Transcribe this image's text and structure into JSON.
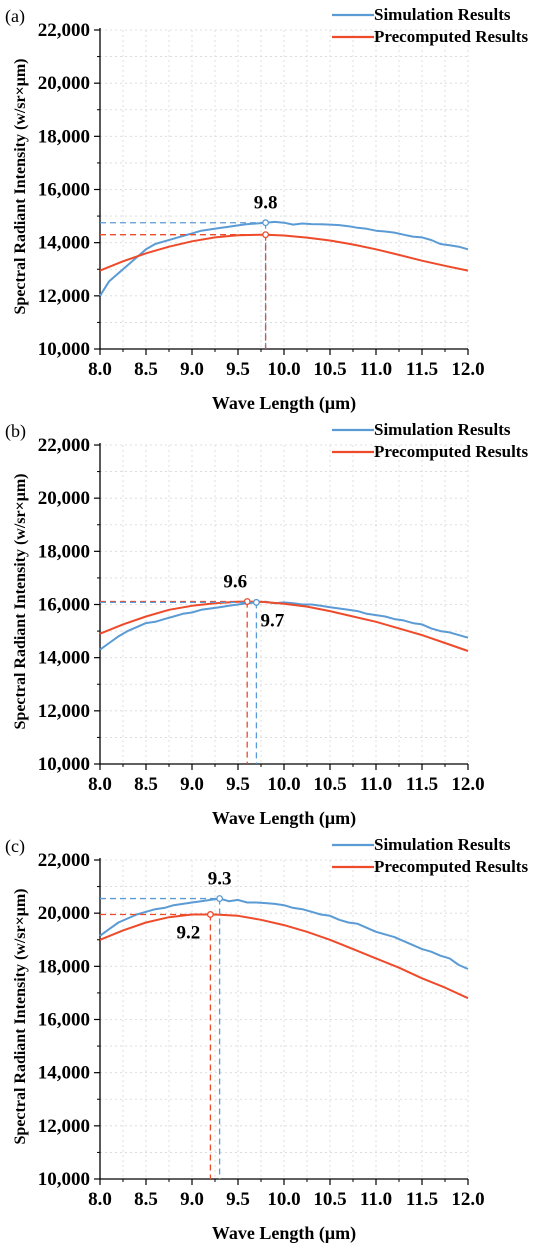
{
  "colors": {
    "simulation": "#5B9BD5",
    "precomputed": "#EE4B2B",
    "grid": "#d8d8d8",
    "axis": "#000000"
  },
  "chart_data": [
    {
      "panel_label": "(a)",
      "type": "line",
      "xlabel": "Wave Length (μm)",
      "ylabel": "Spectral Radiant Intensity (w/sr×μm)",
      "xlim": [
        8.0,
        12.0
      ],
      "ylim": [
        10000,
        22000
      ],
      "xticks": [
        "8.0",
        "8.5",
        "9.0",
        "9.5",
        "10.0",
        "10.5",
        "11.0",
        "11.5",
        "12.0"
      ],
      "yticks": [
        "10,000",
        "12,000",
        "14,000",
        "16,000",
        "18,000",
        "20,000",
        "22,000"
      ],
      "grid": true,
      "legend_position": "top-right",
      "series": [
        {
          "name": "Simulation Results",
          "color": "#5B9BD5",
          "x": [
            8.0,
            8.1,
            8.2,
            8.3,
            8.4,
            8.5,
            8.6,
            8.7,
            8.8,
            8.9,
            9.0,
            9.1,
            9.2,
            9.3,
            9.4,
            9.5,
            9.6,
            9.7,
            9.8,
            9.9,
            10.0,
            10.1,
            10.2,
            10.3,
            10.4,
            10.5,
            10.6,
            10.7,
            10.8,
            10.9,
            11.0,
            11.1,
            11.2,
            11.3,
            11.4,
            11.5,
            11.6,
            11.7,
            11.8,
            11.9,
            12.0
          ],
          "y": [
            12000,
            12550,
            12850,
            13150,
            13450,
            13750,
            13950,
            14050,
            14150,
            14250,
            14350,
            14450,
            14500,
            14550,
            14600,
            14650,
            14700,
            14720,
            14750,
            14780,
            14750,
            14680,
            14720,
            14700,
            14690,
            14680,
            14660,
            14620,
            14560,
            14520,
            14450,
            14420,
            14380,
            14300,
            14230,
            14200,
            14100,
            13950,
            13900,
            13850,
            13750
          ]
        },
        {
          "name": "Precomputed Results",
          "color": "#EE4B2B",
          "x": [
            8.0,
            8.25,
            8.5,
            8.75,
            9.0,
            9.25,
            9.5,
            9.75,
            9.8,
            10.0,
            10.25,
            10.5,
            10.75,
            11.0,
            11.25,
            11.5,
            11.75,
            12.0
          ],
          "y": [
            12950,
            13300,
            13600,
            13850,
            14050,
            14200,
            14280,
            14300,
            14300,
            14270,
            14190,
            14080,
            13930,
            13750,
            13540,
            13320,
            13130,
            12950
          ]
        }
      ],
      "annotations": [
        {
          "text": "9.8",
          "series": "Simulation Results",
          "x": 9.8,
          "y": 14750
        },
        {
          "x": 9.8,
          "y": 14300,
          "series": "Precomputed Results"
        }
      ]
    },
    {
      "panel_label": "(b)",
      "type": "line",
      "xlabel": "Wave Length (μm)",
      "ylabel": "Spectral Radiant Intensity (w/sr×μm)",
      "xlim": [
        8.0,
        12.0
      ],
      "ylim": [
        10000,
        22000
      ],
      "xticks": [
        "8.0",
        "8.5",
        "9.0",
        "9.5",
        "10.0",
        "10.5",
        "11.0",
        "11.5",
        "12.0"
      ],
      "yticks": [
        "10,000",
        "12,000",
        "14,000",
        "16,000",
        "18,000",
        "20,000",
        "22,000"
      ],
      "grid": true,
      "legend_position": "top-right",
      "series": [
        {
          "name": "Simulation Results",
          "color": "#5B9BD5",
          "x": [
            8.0,
            8.1,
            8.2,
            8.3,
            8.4,
            8.5,
            8.6,
            8.7,
            8.8,
            8.9,
            9.0,
            9.1,
            9.2,
            9.3,
            9.4,
            9.5,
            9.6,
            9.7,
            9.8,
            9.9,
            10.0,
            10.1,
            10.2,
            10.3,
            10.4,
            10.5,
            10.6,
            10.7,
            10.8,
            10.9,
            11.0,
            11.1,
            11.2,
            11.3,
            11.4,
            11.5,
            11.6,
            11.7,
            11.8,
            11.9,
            12.0
          ],
          "y": [
            14300,
            14550,
            14800,
            15000,
            15150,
            15300,
            15350,
            15450,
            15550,
            15650,
            15700,
            15800,
            15850,
            15900,
            15950,
            16000,
            16050,
            16080,
            16100,
            16050,
            16080,
            16050,
            16000,
            16000,
            15950,
            15900,
            15850,
            15800,
            15750,
            15650,
            15600,
            15550,
            15450,
            15400,
            15300,
            15250,
            15100,
            15000,
            14950,
            14850,
            14750
          ]
        },
        {
          "name": "Precomputed Results",
          "color": "#EE4B2B",
          "x": [
            8.0,
            8.25,
            8.5,
            8.75,
            9.0,
            9.25,
            9.5,
            9.6,
            9.75,
            10.0,
            10.25,
            10.5,
            10.75,
            11.0,
            11.25,
            11.5,
            11.75,
            12.0
          ],
          "y": [
            14900,
            15250,
            15550,
            15800,
            15950,
            16050,
            16100,
            16110,
            16100,
            16030,
            15920,
            15750,
            15550,
            15350,
            15100,
            14850,
            14550,
            14250
          ]
        }
      ],
      "annotations": [
        {
          "text": "9.6",
          "series": "Precomputed Results",
          "x": 9.6,
          "y": 16110
        },
        {
          "text": "9.7",
          "series": "Simulation Results",
          "x": 9.7,
          "y": 16080
        }
      ]
    },
    {
      "panel_label": "(c)",
      "type": "line",
      "xlabel": "Wave Length (μm)",
      "ylabel": "Spectral Radiant Intensity (w/sr×μm)",
      "xlim": [
        8.0,
        12.0
      ],
      "ylim": [
        10000,
        22000
      ],
      "xticks": [
        "8.0",
        "8.5",
        "9.0",
        "9.5",
        "10.0",
        "10.5",
        "11.0",
        "11.5",
        "12.0"
      ],
      "yticks": [
        "10,000",
        "12,000",
        "14,000",
        "16,000",
        "18,000",
        "20,000",
        "22,000"
      ],
      "grid": true,
      "legend_position": "top-right",
      "series": [
        {
          "name": "Simulation Results",
          "color": "#5B9BD5",
          "x": [
            8.0,
            8.1,
            8.2,
            8.3,
            8.4,
            8.5,
            8.6,
            8.7,
            8.8,
            8.9,
            9.0,
            9.1,
            9.2,
            9.3,
            9.4,
            9.5,
            9.6,
            9.7,
            9.8,
            9.9,
            10.0,
            10.1,
            10.2,
            10.3,
            10.4,
            10.5,
            10.6,
            10.7,
            10.8,
            10.9,
            11.0,
            11.1,
            11.2,
            11.3,
            11.4,
            11.5,
            11.6,
            11.7,
            11.8,
            11.9,
            12.0
          ],
          "y": [
            19150,
            19400,
            19650,
            19800,
            19950,
            20050,
            20150,
            20200,
            20300,
            20350,
            20400,
            20450,
            20500,
            20550,
            20450,
            20500,
            20400,
            20400,
            20380,
            20350,
            20300,
            20200,
            20150,
            20050,
            19950,
            19900,
            19750,
            19650,
            19600,
            19450,
            19300,
            19200,
            19100,
            18950,
            18800,
            18650,
            18550,
            18400,
            18300,
            18050,
            17900
          ]
        },
        {
          "name": "Precomputed Results",
          "color": "#EE4B2B",
          "x": [
            8.0,
            8.25,
            8.5,
            8.75,
            9.0,
            9.2,
            9.25,
            9.5,
            9.75,
            10.0,
            10.25,
            10.5,
            10.75,
            11.0,
            11.25,
            11.5,
            11.75,
            12.0
          ],
          "y": [
            19000,
            19350,
            19650,
            19850,
            19950,
            19950,
            19950,
            19900,
            19750,
            19550,
            19300,
            19000,
            18650,
            18300,
            17950,
            17550,
            17200,
            16800
          ]
        }
      ],
      "annotations": [
        {
          "text": "9.3",
          "series": "Simulation Results",
          "x": 9.3,
          "y": 20550
        },
        {
          "text": "9.2",
          "series": "Precomputed Results",
          "x": 9.2,
          "y": 19950
        }
      ]
    }
  ]
}
